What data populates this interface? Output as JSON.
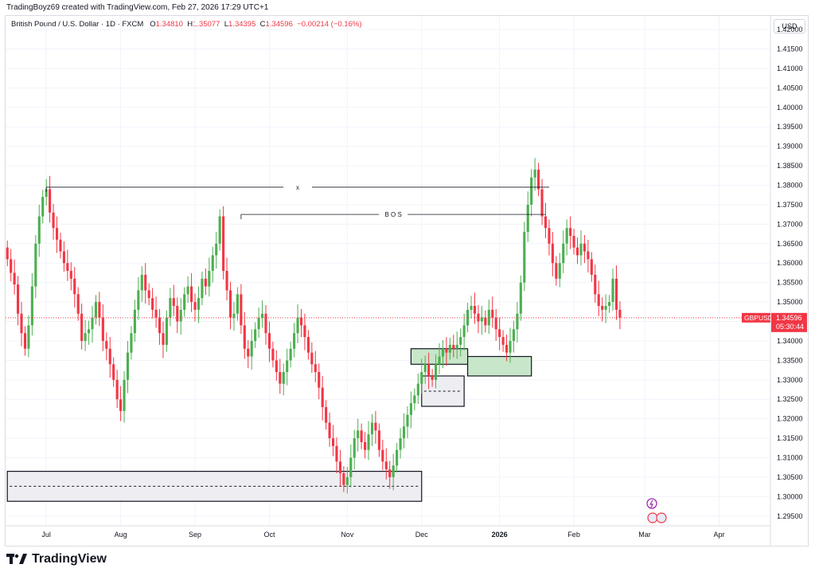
{
  "header": {
    "author_line": "TradingBoyz69 created with TradingView.com, Feb 27, 2026 17:29 UTC+1"
  },
  "legend": {
    "symbol": "British Pound / U.S. Dollar · 1D · FXCM",
    "open_label": "O",
    "open": "1.34810",
    "high_label": "H",
    "high": "1.35077",
    "low_label": "L",
    "low": "1.34395",
    "close_label": "C",
    "close": "1.34596",
    "change": "−0.00214 (−0.16%)"
  },
  "currency_button": "USD",
  "brand": "TradingView",
  "colors": {
    "up": "#089981",
    "up_body": "#4caf50",
    "down": "#f23645",
    "zone_green": "#c8e6c9",
    "zone_gray": "#eeeef2"
  },
  "chart_data": {
    "type": "candlestick",
    "symbol_tag": "GBPUSD",
    "last_price": "1.34596",
    "countdown": "05:30:44",
    "y_ticks": [
      "1.42000",
      "1.41500",
      "1.41000",
      "1.40500",
      "1.40000",
      "1.39500",
      "1.39000",
      "1.38500",
      "1.38000",
      "1.37500",
      "1.37000",
      "1.36500",
      "1.36000",
      "1.35500",
      "1.35000",
      "1.34500",
      "1.34000",
      "1.33500",
      "1.33000",
      "1.32500",
      "1.32000",
      "1.31500",
      "1.31000",
      "1.30500",
      "1.30000",
      "1.29500"
    ],
    "ylim": [
      1.2925,
      1.4235
    ],
    "x_ticks": [
      {
        "label": "Jul",
        "index": 11
      },
      {
        "label": "Aug",
        "index": 32
      },
      {
        "label": "Sep",
        "index": 53
      },
      {
        "label": "Oct",
        "index": 74
      },
      {
        "label": "Nov",
        "index": 96
      },
      {
        "label": "Dec",
        "index": 117
      },
      {
        "label": "2026",
        "index": 139
      },
      {
        "label": "Feb",
        "index": 160
      },
      {
        "label": "Mar",
        "index": 180
      },
      {
        "label": "Apr",
        "index": 201
      }
    ],
    "closes": [
      1.361,
      1.3575,
      1.3545,
      1.347,
      1.342,
      1.338,
      1.344,
      1.354,
      1.365,
      1.372,
      1.377,
      1.379,
      1.373,
      1.369,
      1.366,
      1.363,
      1.36,
      1.358,
      1.356,
      1.352,
      1.347,
      1.34,
      1.342,
      1.343,
      1.346,
      1.35,
      1.346,
      1.34,
      1.338,
      1.334,
      1.33,
      1.325,
      1.322,
      1.33,
      1.337,
      1.342,
      1.348,
      1.353,
      1.357,
      1.353,
      1.351,
      1.348,
      1.346,
      1.342,
      1.339,
      1.346,
      1.351,
      1.349,
      1.345,
      1.348,
      1.352,
      1.354,
      1.35,
      1.348,
      1.351,
      1.356,
      1.354,
      1.358,
      1.362,
      1.365,
      1.372,
      1.358,
      1.353,
      1.346,
      1.347,
      1.352,
      1.344,
      1.338,
      1.336,
      1.34,
      1.343,
      1.346,
      1.347,
      1.342,
      1.338,
      1.335,
      1.332,
      1.329,
      1.332,
      1.335,
      1.338,
      1.342,
      1.346,
      1.344,
      1.341,
      1.337,
      1.334,
      1.332,
      1.328,
      1.323,
      1.319,
      1.315,
      1.313,
      1.309,
      1.306,
      1.303,
      1.305,
      1.31,
      1.315,
      1.317,
      1.314,
      1.312,
      1.316,
      1.319,
      1.317,
      1.312,
      1.309,
      1.307,
      1.305,
      1.308,
      1.312,
      1.315,
      1.318,
      1.321,
      1.324,
      1.326,
      1.329,
      1.332,
      1.334,
      1.331,
      1.33,
      1.334,
      1.336,
      1.338,
      1.337,
      1.339,
      1.338,
      1.339,
      1.341,
      1.344,
      1.348,
      1.349,
      1.347,
      1.345,
      1.346,
      1.344,
      1.348,
      1.346,
      1.343,
      1.341,
      1.339,
      1.337,
      1.34,
      1.343,
      1.347,
      1.355,
      1.368,
      1.375,
      1.382,
      1.384,
      1.379,
      1.372,
      1.369,
      1.365,
      1.36,
      1.356,
      1.36,
      1.365,
      1.369,
      1.367,
      1.364,
      1.362,
      1.365,
      1.363,
      1.361,
      1.357,
      1.352,
      1.349,
      1.348,
      1.349,
      1.35,
      1.356,
      1.348,
      1.346
    ],
    "x_count": 216,
    "zones": [
      {
        "type": "demand",
        "x_from": 114,
        "x_to": 130,
        "y_from": 1.338,
        "y_to": 1.334
      },
      {
        "type": "demand",
        "x_from": 130,
        "x_to": 148,
        "y_from": 1.336,
        "y_to": 1.331
      },
      {
        "type": "range",
        "x_from": 117,
        "x_to": 129,
        "y_from": 1.331,
        "y_to": 1.3232
      },
      {
        "type": "range",
        "x_from": 0,
        "x_to": 117,
        "y_from": 1.3065,
        "y_to": 1.2988
      }
    ],
    "levels": [
      {
        "label": "x",
        "price": 1.3795,
        "x_from": 11,
        "x_to": 153
      },
      {
        "label": "B O S",
        "price": 1.3725,
        "x_from": 66,
        "x_to": 152
      }
    ]
  }
}
